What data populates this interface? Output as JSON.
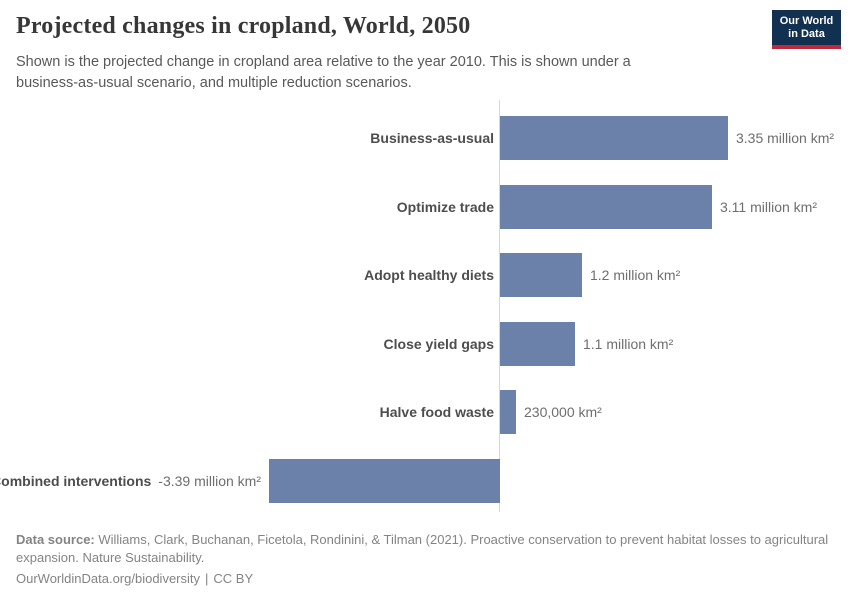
{
  "header": {
    "title": "Projected changes in cropland, World, 2050",
    "subtitle": "Shown is the projected change in cropland area relative to the year 2010. This is shown under a business-as-usual scenario, and multiple reduction scenarios."
  },
  "logo": {
    "line1": "Our World",
    "line2": "in Data"
  },
  "chart_data": {
    "type": "bar",
    "orientation": "horizontal",
    "title": "Projected changes in cropland, World, 2050",
    "categories": [
      "Business-as-usual",
      "Optimize trade",
      "Adopt healthy diets",
      "Close yield gaps",
      "Halve food waste",
      "Combined interventions"
    ],
    "values": [
      3.35,
      3.11,
      1.2,
      1.1,
      0.23,
      -3.39
    ],
    "value_labels": [
      "3.35 million km²",
      "3.11 million km²",
      "1.2 million km²",
      "1.1 million km²",
      "230,000 km²",
      "-3.39 million km²"
    ],
    "unit": "million km²",
    "xlim": [
      -3.39,
      3.35
    ],
    "baseline": 0,
    "grid": "off",
    "legend": "none"
  },
  "colors": {
    "bar": "#6c81aa",
    "axis": "#d7d7d7",
    "logo_navy": "#12304f",
    "logo_red": "#c0293b"
  },
  "footer": {
    "data_source_label": "Data source:",
    "data_source_text": " Williams, Clark, Buchanan, Ficetola, Rondinini, & Tilman (2021). Proactive conservation to prevent habitat losses to agricultural expansion. Nature Sustainability.",
    "url": "OurWorldinData.org/biodiversity",
    "separator": "|",
    "license": "CC BY"
  }
}
